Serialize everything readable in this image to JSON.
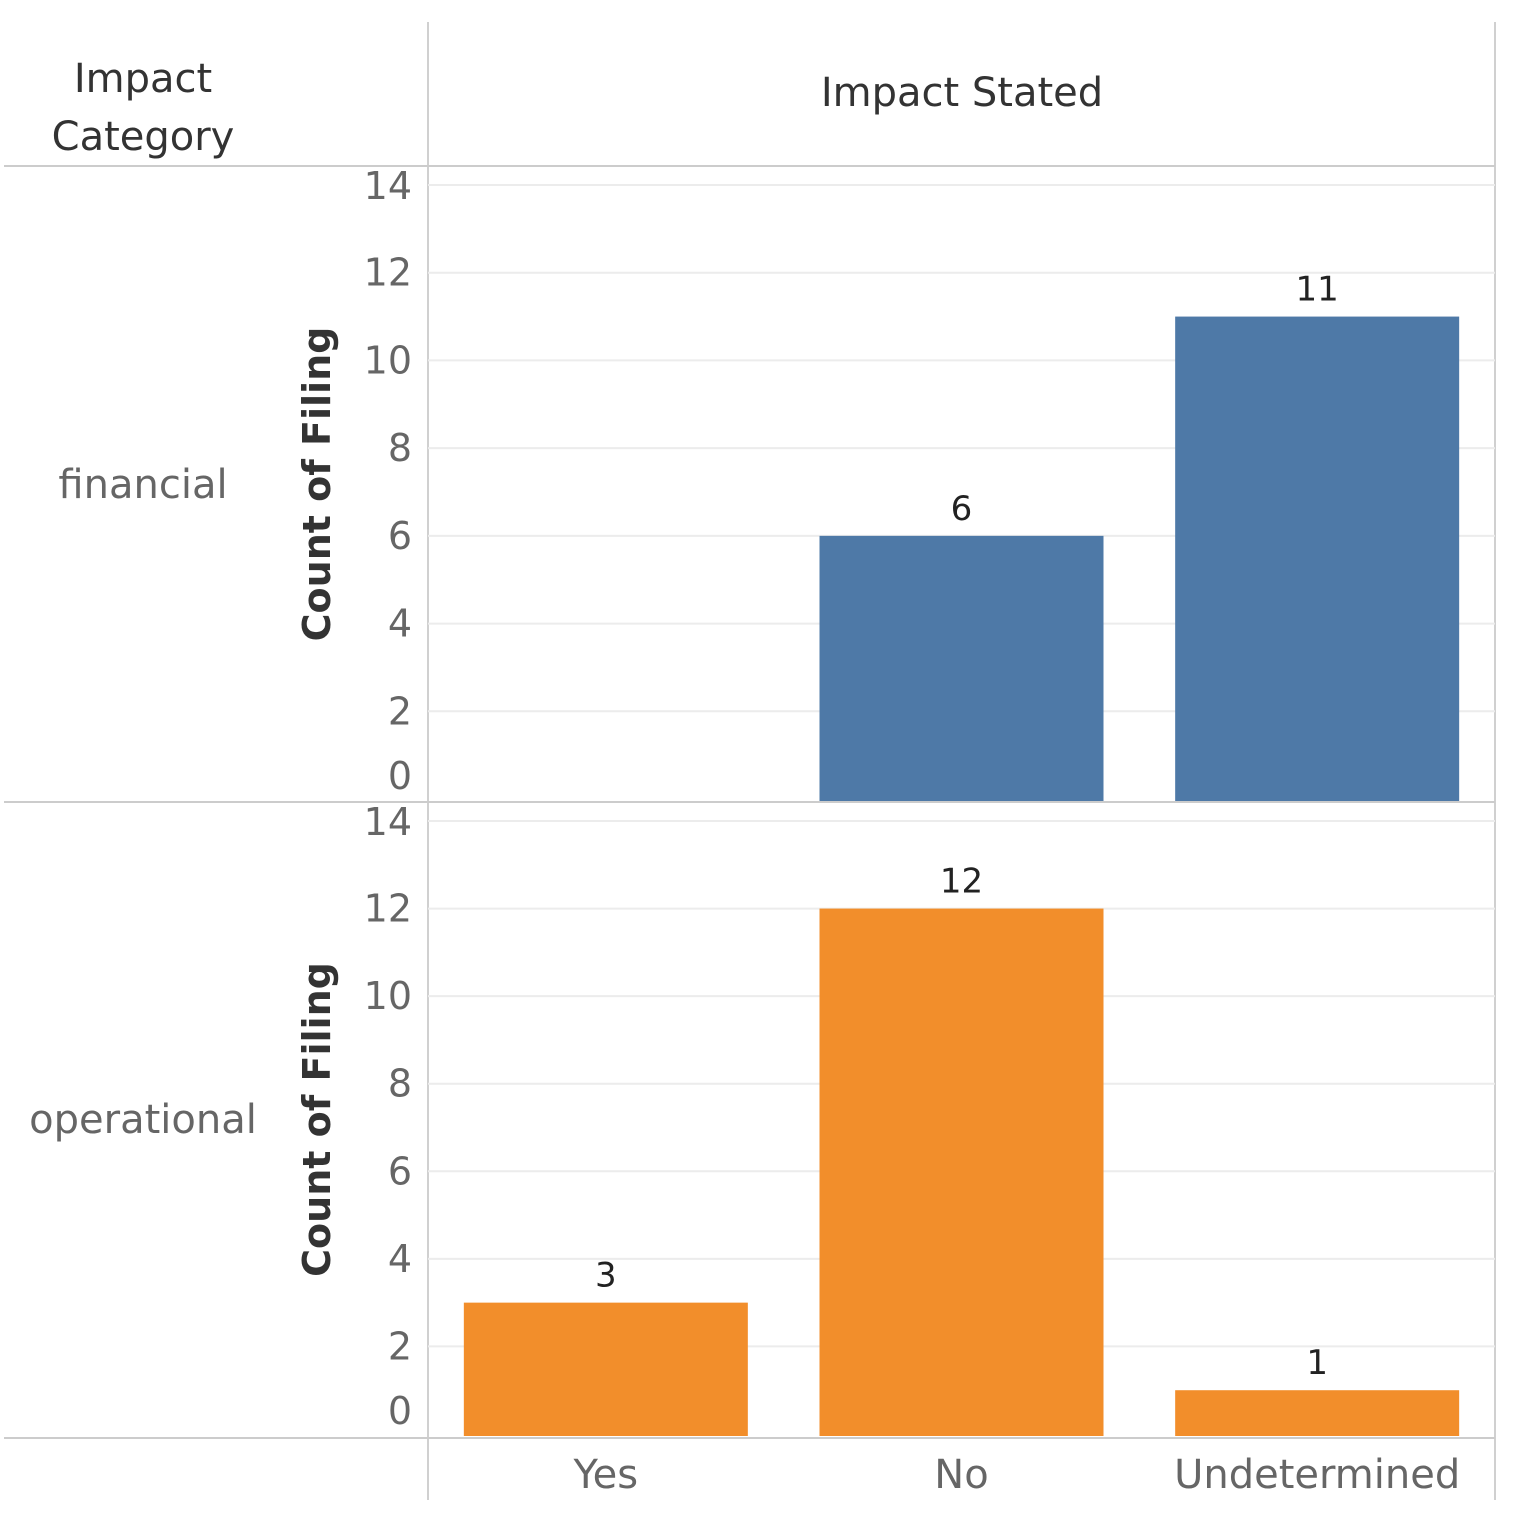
{
  "header": {
    "row_dim_line1": "Impact",
    "row_dim_line2": "Category",
    "col_dim": "Impact Stated"
  },
  "chart_data": {
    "type": "bar",
    "categories": [
      "Yes",
      "No",
      "Undetermined"
    ],
    "ylabel": "Count of Filing",
    "ylim": [
      0,
      14
    ],
    "yticks": [
      0,
      2,
      4,
      6,
      8,
      10,
      12,
      14
    ],
    "grid": true,
    "panels": [
      {
        "name": "financial",
        "color": "#4e79a7",
        "values": [
          null,
          6,
          11
        ],
        "labels": [
          "",
          "6",
          "11"
        ]
      },
      {
        "name": "operational",
        "color": "#f28e2b",
        "values": [
          3,
          12,
          1
        ],
        "labels": [
          "3",
          "12",
          "1"
        ]
      }
    ]
  }
}
